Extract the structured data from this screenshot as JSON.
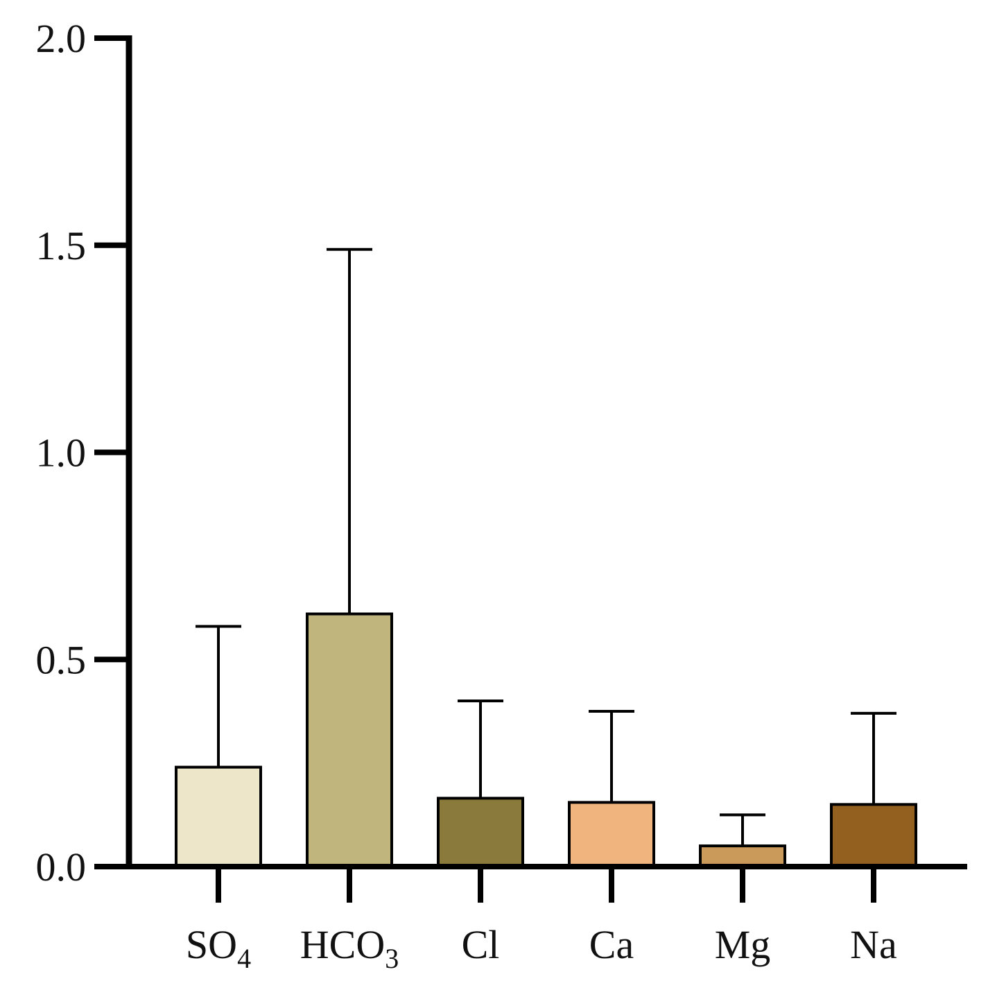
{
  "chart_data": {
    "type": "bar",
    "title": "",
    "xlabel": "",
    "ylabel": "",
    "ylim": [
      0,
      2.0
    ],
    "y_ticks": [
      {
        "value": 0.0,
        "label": "0.0"
      },
      {
        "value": 0.5,
        "label": "0.5"
      },
      {
        "value": 1.0,
        "label": "1.0"
      },
      {
        "value": 1.5,
        "label": "1.5"
      },
      {
        "value": 2.0,
        "label": "2.0"
      }
    ],
    "categories": [
      "SO4",
      "HCO3",
      "Cl",
      "Ca",
      "Mg",
      "Na"
    ],
    "category_labels": [
      {
        "main": "SO",
        "sub": "4"
      },
      {
        "main": "HCO",
        "sub": "3"
      },
      {
        "main": "Cl",
        "sub": ""
      },
      {
        "main": "Ca",
        "sub": ""
      },
      {
        "main": "Mg",
        "sub": ""
      },
      {
        "main": "Na",
        "sub": ""
      }
    ],
    "values": [
      0.24,
      0.61,
      0.165,
      0.155,
      0.05,
      0.15
    ],
    "error_upper": [
      0.58,
      1.49,
      0.4,
      0.375,
      0.125,
      0.37
    ],
    "colors": [
      "#EDE6C9",
      "#BFB57D",
      "#8A7B3C",
      "#F0B47F",
      "#C99A5A",
      "#946020"
    ],
    "grid": false,
    "legend": "none"
  }
}
